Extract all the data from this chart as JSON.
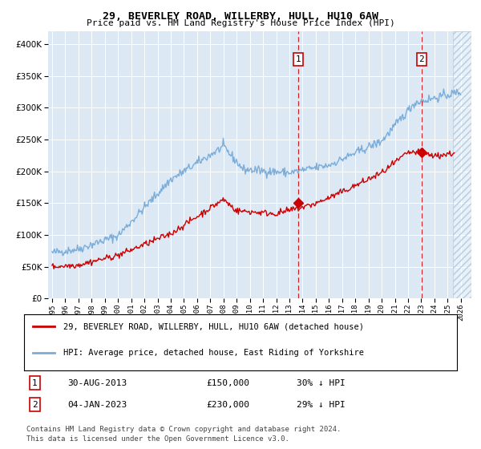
{
  "title": "29, BEVERLEY ROAD, WILLERBY, HULL, HU10 6AW",
  "subtitle": "Price paid vs. HM Land Registry's House Price Index (HPI)",
  "legend_house": "29, BEVERLEY ROAD, WILLERBY, HULL, HU10 6AW (detached house)",
  "legend_hpi": "HPI: Average price, detached house, East Riding of Yorkshire",
  "footer1": "Contains HM Land Registry data © Crown copyright and database right 2024.",
  "footer2": "This data is licensed under the Open Government Licence v3.0.",
  "house_color": "#cc0000",
  "hpi_color": "#7aadda",
  "background_color": "#dce9f5",
  "hatch_color": "#b0c8df",
  "annotation1": {
    "label": "1",
    "date_str": "30-AUG-2013",
    "price_str": "£150,000",
    "pct_str": "30% ↓ HPI",
    "x_year": 2013.66,
    "y_val": 150000
  },
  "annotation2": {
    "label": "2",
    "date_str": "04-JAN-2023",
    "price_str": "£230,000",
    "pct_str": "29% ↓ HPI",
    "x_year": 2023.01,
    "y_val": 230000
  },
  "ylim": [
    0,
    420000
  ],
  "xlim_start": 1994.7,
  "xlim_end": 2026.8,
  "hatch_start": 2025.4
}
